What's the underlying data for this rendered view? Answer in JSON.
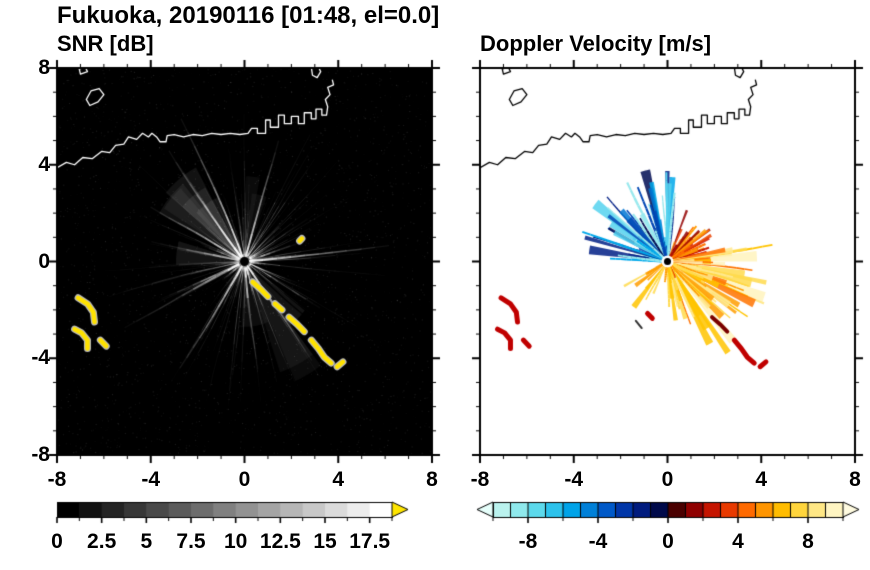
{
  "page": {
    "title": "Fukuoka, 20190116 [01:48, el=0.0]"
  },
  "panels": {
    "left": {
      "title": "SNR [dB]"
    },
    "right": {
      "title": "Doppler Velocity [m/s]"
    }
  },
  "chart_data": [
    {
      "type": "heatmap",
      "subtype": "radar_ppi_snr",
      "title": "SNR [dB]",
      "xlim": [
        -8,
        8
      ],
      "ylim": [
        -8,
        8
      ],
      "x_ticks": [
        -8,
        -4,
        0,
        4,
        8
      ],
      "x_tick_labels": [
        "-8",
        "-4",
        "0",
        "4",
        "8"
      ],
      "y_ticks": [
        8,
        4,
        0,
        -4,
        -8
      ],
      "y_tick_labels": [
        "8",
        "4",
        "0",
        "-4",
        "-8"
      ],
      "minor_tick_step": 1,
      "background": "#000000",
      "coast_color": "#ffffff",
      "center": [
        0,
        0
      ],
      "colorbar": {
        "min": 0,
        "max": 18.75,
        "tick_values": [
          0,
          2.5,
          5,
          7.5,
          10,
          12.5,
          15,
          17.5
        ],
        "tick_labels": [
          "0",
          "2.5",
          "5",
          "7.5",
          "10",
          "12.5",
          "15",
          "17.5"
        ],
        "segments": 15,
        "ramp": [
          "#000000",
          "#ffffff"
        ],
        "over_arrow_color": "#ffe600"
      },
      "echo": {
        "ray_color": "#ffffff",
        "strong_patch_color": "#ffe200",
        "count": 160,
        "min_len": 1.1,
        "max_len": 7.0,
        "speckles": 2800,
        "bright_rays": [
          {
            "angle": 5,
            "len": 6.2
          },
          {
            "angle": 112,
            "len": 6.5
          },
          {
            "angle": 128,
            "len": 5.6
          },
          {
            "angle": 75,
            "len": 5.2
          },
          {
            "angle": -55,
            "len": 5.0
          },
          {
            "angle": -120,
            "len": 5.2
          },
          {
            "angle": 150,
            "len": 4.6
          }
        ],
        "dark_spokes": [
          {
            "angle": -42,
            "len": 5.2
          },
          {
            "angle": -30,
            "len": 4.6
          },
          {
            "angle": 102,
            "len": 5.0
          }
        ],
        "patches": {
          "lower_left": [
            [
              [
                -7.1,
                -1.5
              ],
              [
                -6.7,
                -1.75
              ],
              [
                -6.45,
                -2.1
              ],
              [
                -6.4,
                -2.5
              ]
            ],
            [
              [
                -7.25,
                -2.8
              ],
              [
                -6.95,
                -2.95
              ],
              [
                -6.7,
                -3.25
              ],
              [
                -6.7,
                -3.6
              ]
            ],
            [
              [
                -6.15,
                -3.25
              ],
              [
                -5.9,
                -3.5
              ]
            ]
          ],
          "southeast_chain": [
            [
              [
                0.35,
                -0.85
              ],
              [
                0.7,
                -1.15
              ],
              [
                1.0,
                -1.45
              ]
            ],
            [
              [
                1.3,
                -1.75
              ],
              [
                1.6,
                -2.0
              ]
            ],
            [
              [
                1.9,
                -2.3
              ],
              [
                2.25,
                -2.6
              ],
              [
                2.55,
                -2.9
              ]
            ],
            [
              [
                2.85,
                -3.25
              ],
              [
                3.15,
                -3.6
              ],
              [
                3.4,
                -3.95
              ],
              [
                3.7,
                -4.2
              ]
            ],
            [
              [
                3.95,
                -4.35
              ],
              [
                4.2,
                -4.15
              ]
            ]
          ],
          "isolated": [
            [
              [
                2.35,
                0.85
              ],
              [
                2.45,
                0.95
              ]
            ]
          ]
        }
      }
    },
    {
      "type": "heatmap",
      "subtype": "radar_ppi_velocity",
      "title": "Doppler Velocity [m/s]",
      "xlim": [
        -8,
        8
      ],
      "ylim": [
        -8,
        8
      ],
      "x_ticks": [
        -8,
        -4,
        0,
        4,
        8
      ],
      "x_tick_labels": [
        "-8",
        "-4",
        "0",
        "4",
        "8"
      ],
      "y_ticks": [
        8,
        4,
        0,
        -4,
        -8
      ],
      "y_tick_labels": [],
      "minor_tick_step": 1,
      "background": "#ffffff",
      "coast_color": "#000000",
      "center": [
        0,
        0
      ],
      "colorbar": {
        "min": -10,
        "max": 10,
        "tick_values": [
          -8,
          -4,
          0,
          4,
          8
        ],
        "tick_labels": [
          "-8",
          "-4",
          "0",
          "4",
          "8"
        ],
        "colors": [
          "#baf2ee",
          "#8fe9ec",
          "#5cd9ec",
          "#2cc2ec",
          "#00a3e8",
          "#0080d8",
          "#0059c8",
          "#0036a8",
          "#001b7e",
          "#000a4a",
          "#4a0000",
          "#8f0000",
          "#c51400",
          "#e83a00",
          "#ff6a00",
          "#ff9500",
          "#ffbc00",
          "#ffd53c",
          "#ffe785",
          "#fff5c2"
        ],
        "under_arrow_color": "#e6fffb",
        "over_arrow_color": "#fffbe0"
      },
      "fans": [
        {
          "name": "toward-blue",
          "angle_range": [
            82,
            178
          ],
          "count": 85,
          "len": [
            0.5,
            3.9
          ],
          "colors": [
            "#9ae9ee",
            "#55d2ee",
            "#00a8ea",
            "#0076d4",
            "#0046b4",
            "#001e85",
            "#000c52"
          ]
        },
        {
          "name": "away-red-ne",
          "angle_range": [
            8,
            70
          ],
          "count": 45,
          "len": [
            0.6,
            2.3
          ],
          "colors": [
            "#c81400",
            "#ea4200",
            "#ff7300",
            "#ff9d00",
            "#930000"
          ]
        },
        {
          "name": "away-yellow-e",
          "angle_range": [
            -68,
            12
          ],
          "count": 95,
          "len": [
            0.8,
            4.6
          ],
          "colors": [
            "#ff9d00",
            "#ffc400",
            "#ffda4d",
            "#ffe98f",
            "#fff3bd",
            "#ff7300"
          ]
        },
        {
          "name": "away-yellow-s",
          "angle_range": [
            -88,
            -64
          ],
          "count": 22,
          "len": [
            0.6,
            2.6
          ],
          "colors": [
            "#ffc400",
            "#ffda4d",
            "#ffe98f",
            "#ea4200"
          ]
        },
        {
          "name": "stray-warm-sw",
          "angle_range": [
            -152,
            -96
          ],
          "count": 12,
          "len": [
            0.7,
            2.4
          ],
          "colors": [
            "#ffc400",
            "#ffda4d",
            "#ff9d00"
          ]
        }
      ],
      "patches": {
        "red": [
          [
            [
              -7.1,
              -1.5
            ],
            [
              -6.7,
              -1.75
            ],
            [
              -6.45,
              -2.1
            ],
            [
              -6.4,
              -2.5
            ]
          ],
          [
            [
              -7.25,
              -2.8
            ],
            [
              -6.95,
              -2.95
            ],
            [
              -6.7,
              -3.25
            ],
            [
              -6.7,
              -3.6
            ]
          ],
          [
            [
              -6.15,
              -3.25
            ],
            [
              -5.9,
              -3.5
            ]
          ],
          [
            [
              2.85,
              -3.25
            ],
            [
              3.15,
              -3.6
            ],
            [
              3.4,
              -3.95
            ],
            [
              3.7,
              -4.2
            ]
          ],
          [
            [
              3.95,
              -4.35
            ],
            [
              4.2,
              -4.15
            ]
          ],
          [
            [
              -0.85,
              -2.15
            ],
            [
              -0.65,
              -2.35
            ]
          ]
        ],
        "dark_red": [
          [
            [
              1.9,
              -2.3
            ],
            [
              2.25,
              -2.6
            ],
            [
              2.55,
              -2.9
            ]
          ]
        ],
        "black_dash": [
          [
            [
              -1.35,
              -2.45
            ],
            [
              -1.1,
              -2.75
            ]
          ]
        ]
      }
    }
  ],
  "coastline": {
    "paths": [
      {
        "closed": false,
        "pts": [
          [
            -8.05,
            3.85
          ],
          [
            -7.6,
            4.1
          ],
          [
            -7.25,
            4.0
          ],
          [
            -6.9,
            4.3
          ],
          [
            -6.5,
            4.25
          ],
          [
            -6.1,
            4.55
          ],
          [
            -5.75,
            4.5
          ],
          [
            -5.5,
            4.8
          ],
          [
            -5.15,
            4.85
          ],
          [
            -4.95,
            5.15
          ],
          [
            -4.6,
            5.05
          ],
          [
            -4.35,
            5.3
          ],
          [
            -4.1,
            5.15
          ],
          [
            -3.95,
            5.3
          ],
          [
            -3.75,
            5.15
          ],
          [
            -3.6,
            4.95
          ],
          [
            -3.35,
            4.95
          ],
          [
            -3.3,
            5.2
          ],
          [
            -3.0,
            5.25
          ],
          [
            -2.6,
            5.15
          ],
          [
            -2.2,
            5.25
          ],
          [
            -1.8,
            5.2
          ],
          [
            -1.4,
            5.3
          ],
          [
            -1.0,
            5.25
          ],
          [
            -0.6,
            5.3
          ],
          [
            -0.2,
            5.25
          ],
          [
            0.15,
            5.3
          ],
          [
            0.3,
            5.5
          ],
          [
            0.55,
            5.5
          ],
          [
            0.55,
            5.3
          ],
          [
            0.9,
            5.3
          ],
          [
            0.9,
            5.85
          ],
          [
            1.1,
            5.85
          ],
          [
            1.1,
            5.55
          ],
          [
            1.45,
            5.55
          ],
          [
            1.45,
            6.05
          ],
          [
            1.7,
            6.05
          ],
          [
            1.7,
            5.7
          ],
          [
            2.0,
            5.7
          ],
          [
            2.0,
            6.0
          ],
          [
            2.3,
            6.0
          ],
          [
            2.3,
            5.7
          ],
          [
            2.55,
            5.7
          ],
          [
            2.55,
            6.15
          ],
          [
            2.85,
            6.15
          ],
          [
            2.85,
            5.9
          ],
          [
            3.05,
            5.9
          ],
          [
            3.05,
            6.3
          ],
          [
            3.3,
            6.3
          ],
          [
            3.3,
            6.05
          ],
          [
            3.5,
            6.05
          ],
          [
            3.55,
            6.4
          ],
          [
            3.45,
            6.7
          ],
          [
            3.65,
            6.9
          ],
          [
            3.55,
            7.2
          ],
          [
            3.8,
            7.3
          ],
          [
            3.75,
            7.5
          ]
        ]
      },
      {
        "closed": true,
        "pts": [
          [
            -6.6,
            6.45
          ],
          [
            -6.25,
            6.6
          ],
          [
            -6.0,
            6.9
          ],
          [
            -6.2,
            7.15
          ],
          [
            -6.55,
            7.05
          ],
          [
            -6.75,
            6.7
          ]
        ]
      },
      {
        "closed": true,
        "pts": [
          [
            -7.0,
            7.75
          ],
          [
            -6.7,
            7.85
          ],
          [
            -6.8,
            8.05
          ],
          [
            -7.05,
            7.95
          ]
        ]
      },
      {
        "closed": false,
        "pts": [
          [
            2.85,
            8.05
          ],
          [
            2.9,
            7.7
          ],
          [
            3.1,
            7.6
          ],
          [
            3.25,
            7.85
          ],
          [
            3.15,
            8.05
          ]
        ]
      }
    ]
  }
}
